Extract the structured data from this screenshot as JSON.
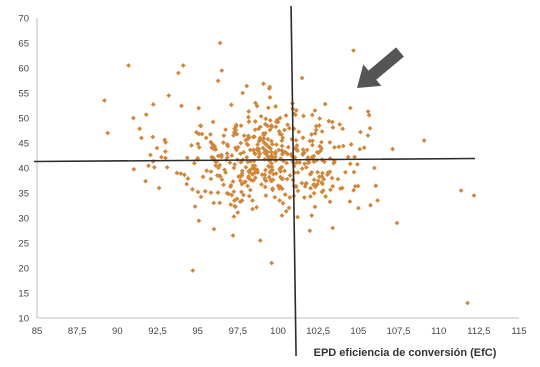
{
  "chart_data": {
    "type": "scatter",
    "title": "",
    "xlabel": "EPD eficiencia de conversión (EfC)",
    "ylabel": "",
    "xlim": [
      85,
      115
    ],
    "ylim": [
      10,
      70
    ],
    "x_ticks": [
      "85",
      "87,5",
      "90",
      "92,5",
      "95",
      "97,5",
      "100",
      "102,5",
      "105",
      "107,5",
      "110",
      "112,5",
      "115"
    ],
    "y_ticks": [
      "10",
      "15",
      "20",
      "25",
      "30",
      "35",
      "40",
      "45",
      "50",
      "55",
      "60",
      "65",
      "70"
    ],
    "reference_lines": {
      "vertical_x": 101,
      "horizontal_y": 41.5
    },
    "annotation": {
      "type": "arrow",
      "points_toward": "upper-right quadrant",
      "color": "#555555"
    },
    "marker_color": "#d1873a",
    "grid": false,
    "legend": "none",
    "point_count": 500,
    "distribution": {
      "center_x": 99.5,
      "center_y": 42,
      "sd_x": 3.0,
      "sd_y": 5.5
    },
    "points": [
      {
        "x": 89.2,
        "y": 53.5
      },
      {
        "x": 89.4,
        "y": 47
      },
      {
        "x": 90.7,
        "y": 60.5
      },
      {
        "x": 91,
        "y": 50
      },
      {
        "x": 91.5,
        "y": 46
      },
      {
        "x": 92.6,
        "y": 36
      },
      {
        "x": 93.2,
        "y": 54.5
      },
      {
        "x": 93.8,
        "y": 59
      },
      {
        "x": 94.1,
        "y": 60.5
      },
      {
        "x": 94.7,
        "y": 19.5
      },
      {
        "x": 96.4,
        "y": 65
      },
      {
        "x": 96.5,
        "y": 59.5
      },
      {
        "x": 98.9,
        "y": 25.5
      },
      {
        "x": 99.6,
        "y": 21
      },
      {
        "x": 100.5,
        "y": 50.5
      },
      {
        "x": 101.5,
        "y": 58
      },
      {
        "x": 102.3,
        "y": 51.5
      },
      {
        "x": 104.5,
        "y": 52
      },
      {
        "x": 104.7,
        "y": 63.5
      },
      {
        "x": 105.6,
        "y": 46.5
      },
      {
        "x": 106,
        "y": 40
      },
      {
        "x": 106.2,
        "y": 33.5
      },
      {
        "x": 107.4,
        "y": 29
      },
      {
        "x": 109.1,
        "y": 45.5
      },
      {
        "x": 111.4,
        "y": 35.5
      },
      {
        "x": 112.2,
        "y": 34.5
      },
      {
        "x": 111.8,
        "y": 13
      },
      {
        "x": 103.4,
        "y": 28
      },
      {
        "x": 102.1,
        "y": 30.5
      },
      {
        "x": 96,
        "y": 33
      },
      {
        "x": 93,
        "y": 42
      },
      {
        "x": 97.2,
        "y": 26.5
      },
      {
        "x": 97.8,
        "y": 55
      },
      {
        "x": 98.6,
        "y": 53
      },
      {
        "x": 100.1,
        "y": 33.5
      },
      {
        "x": 104,
        "y": 36
      }
    ]
  }
}
